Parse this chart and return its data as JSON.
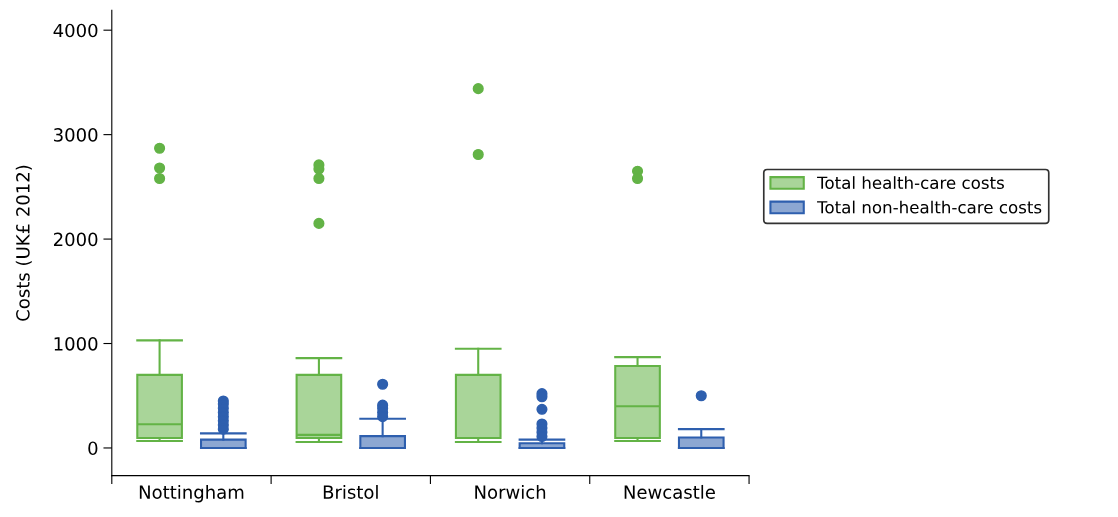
{
  "chart_data": {
    "type": "box",
    "ylabel": "Costs (UK£ 2012)",
    "categories": [
      "Nottingham",
      "Bristol",
      "Norwich",
      "Newcastle"
    ],
    "ylim": [
      -265,
      4190
    ],
    "yticks": [
      0,
      1000,
      2000,
      3000,
      4000
    ],
    "legend": "right",
    "grid": false,
    "series": [
      {
        "name": "Total health-care costs",
        "color": "#63b346",
        "boxes": [
          {
            "low": 66,
            "q1": 95,
            "median": 227,
            "q3": 700,
            "high": 1030,
            "outliers": [
              2870,
              2680,
              2580
            ]
          },
          {
            "low": 57,
            "q1": 95,
            "median": 125,
            "q3": 700,
            "high": 860,
            "outliers": [
              2710,
              2670,
              2580,
              2150
            ]
          },
          {
            "low": 57,
            "q1": 95,
            "median": 95,
            "q3": 700,
            "high": 950,
            "outliers": [
              3440,
              2810
            ]
          },
          {
            "low": 66,
            "q1": 95,
            "median": 400,
            "q3": 785,
            "high": 870,
            "outliers": [
              2650,
              2580
            ]
          }
        ]
      },
      {
        "name": "Total non-health-care costs",
        "color": "#2e5fae",
        "boxes": [
          {
            "low": 0,
            "q1": 0,
            "median": 0,
            "q3": 80,
            "high": 140,
            "outliers": [
              450,
              420,
              380,
              340,
              300,
              260,
              220,
              180
            ]
          },
          {
            "low": 0,
            "q1": 0,
            "median": 0,
            "q3": 113,
            "high": 280,
            "outliers": [
              610,
              410,
              380,
              340,
              300
            ]
          },
          {
            "low": 0,
            "q1": 0,
            "median": 0,
            "q3": 45,
            "high": 80,
            "outliers": [
              520,
              490,
              370,
              230,
              190,
              150,
              110
            ]
          },
          {
            "low": 0,
            "q1": 0,
            "median": 0,
            "q3": 100,
            "high": 180,
            "outliers": [
              500
            ]
          }
        ]
      }
    ]
  }
}
